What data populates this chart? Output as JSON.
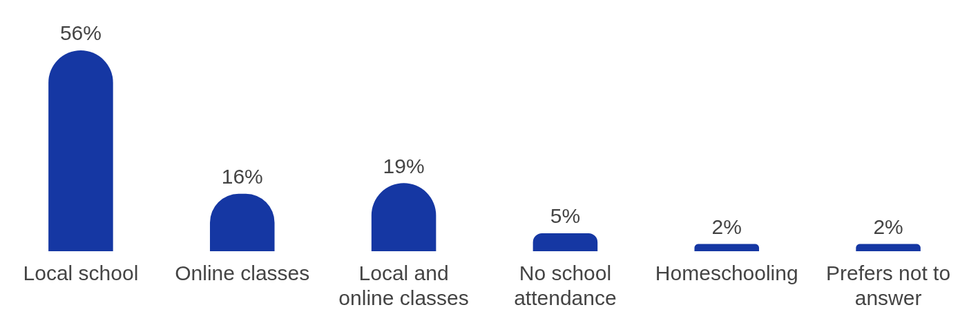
{
  "chart_data": {
    "type": "bar",
    "categories": [
      "Local school",
      "Online classes",
      "Local and online classes",
      "No school attendance",
      "Homeschooling",
      "Prefers not to answer"
    ],
    "values": [
      56,
      16,
      19,
      5,
      2,
      2
    ],
    "value_labels": [
      "56%",
      "16%",
      "19%",
      "5%",
      "2%",
      "2%"
    ],
    "color": "#1537a3",
    "grid": false,
    "legend": false,
    "tick_labels": "x"
  }
}
